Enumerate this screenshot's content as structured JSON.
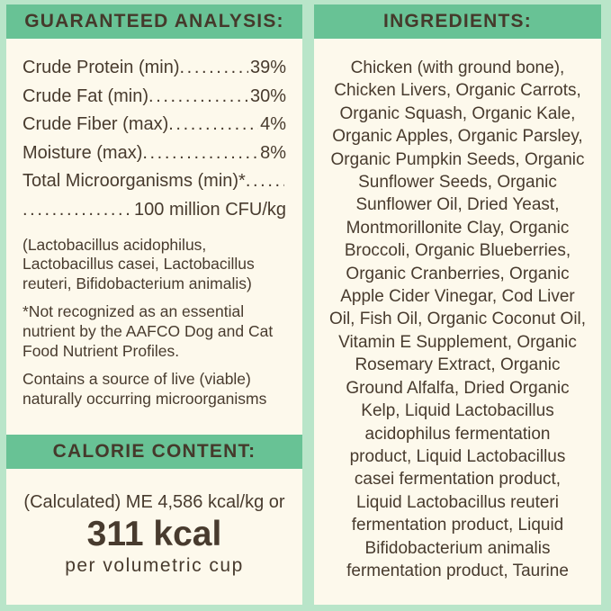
{
  "colors": {
    "background_mint": "#b9e5c9",
    "panel_cream": "#fdf9ec",
    "band_green": "#68c295",
    "text_brown": "#483b2e"
  },
  "guaranteed_analysis": {
    "header": "GUARANTEED ANALYSIS:",
    "leader_dots": "................................................................",
    "rows": [
      {
        "label": "Crude Protein (min)",
        "value": "39%"
      },
      {
        "label": "Crude Fat (min)",
        "value": "30%"
      },
      {
        "label": "Crude Fiber (max)",
        "value": "4%"
      },
      {
        "label": "Moisture (max)",
        "value": "8%"
      },
      {
        "label": "Total Microorganisms (min)*",
        "value": ""
      },
      {
        "label": "",
        "value": "100 million CFU/kg"
      }
    ],
    "notes": [
      [
        "(Lactobacillus acidophilus,",
        "Lactobacillus casei, Lactobacillus",
        "reuteri, Bifidobacterium animalis)"
      ],
      [
        "*Not recognized as an essential",
        "nutrient by the AAFCO Dog and Cat",
        "Food Nutrient Profiles."
      ],
      [
        "Contains a source of live (viable)",
        "naturally occurring microorganisms"
      ]
    ]
  },
  "calorie_content": {
    "header": "CALORIE CONTENT:",
    "line1": "(Calculated) ME 4,586 kcal/kg or",
    "kcal_big": "311 kcal",
    "line3": "per volumetric cup"
  },
  "ingredients": {
    "header": "INGREDIENTS:",
    "lines": [
      "Chicken (with ground bone),",
      "Chicken Livers, Organic Carrots,",
      "Organic Squash, Organic Kale,",
      "Organic Apples, Organic Parsley,",
      "Organic Pumpkin Seeds, Organic",
      "Sunflower Seeds, Organic",
      "Sunflower Oil, Dried Yeast,",
      "Montmorillonite Clay, Organic",
      "Broccoli, Organic Blueberries,",
      "Organic Cranberries, Organic",
      "Apple Cider Vinegar, Cod Liver",
      "Oil, Fish Oil, Organic Coconut Oil,",
      "Vitamin E Supplement, Organic",
      "Rosemary Extract, Organic",
      "Ground Alfalfa, Dried Organic",
      "Kelp, Liquid Lactobacillus",
      "acidophilus fermentation",
      "product, Liquid Lactobacillus",
      "casei fermentation product,",
      "Liquid Lactobacillus reuteri",
      "fermentation product, Liquid",
      "Bifidobacterium animalis",
      "fermentation product, Taurine"
    ]
  }
}
